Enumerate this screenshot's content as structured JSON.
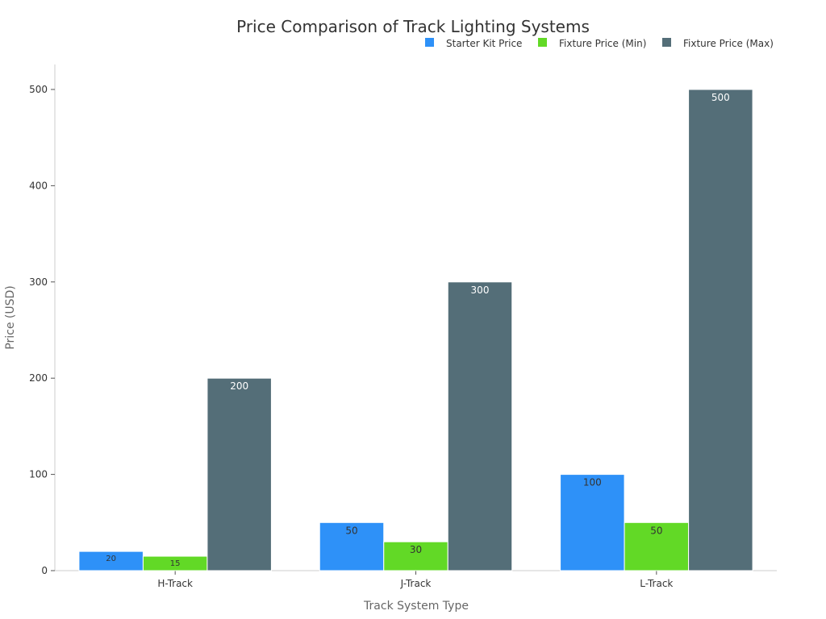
{
  "chart_data": {
    "type": "bar",
    "title": "Price Comparison of Track Lighting Systems",
    "xlabel": "Track System Type",
    "ylabel": "Price (USD)",
    "categories": [
      "H-Track",
      "J-Track",
      "L-Track"
    ],
    "series": [
      {
        "name": "Starter Kit Price",
        "color": "#2e91f8",
        "label_color": "#333333",
        "values": [
          20,
          50,
          100
        ]
      },
      {
        "name": "Fixture Price (Min)",
        "color": "#62d926",
        "label_color": "#333333",
        "values": [
          15,
          30,
          50
        ]
      },
      {
        "name": "Fixture Price (Max)",
        "color": "#546e78",
        "label_color": "#ffffff",
        "values": [
          200,
          300,
          500
        ]
      }
    ],
    "ylim": [
      0,
      525
    ],
    "yticks": [
      0,
      100,
      200,
      300,
      400,
      500
    ],
    "grid": false,
    "legend": "top-right"
  }
}
